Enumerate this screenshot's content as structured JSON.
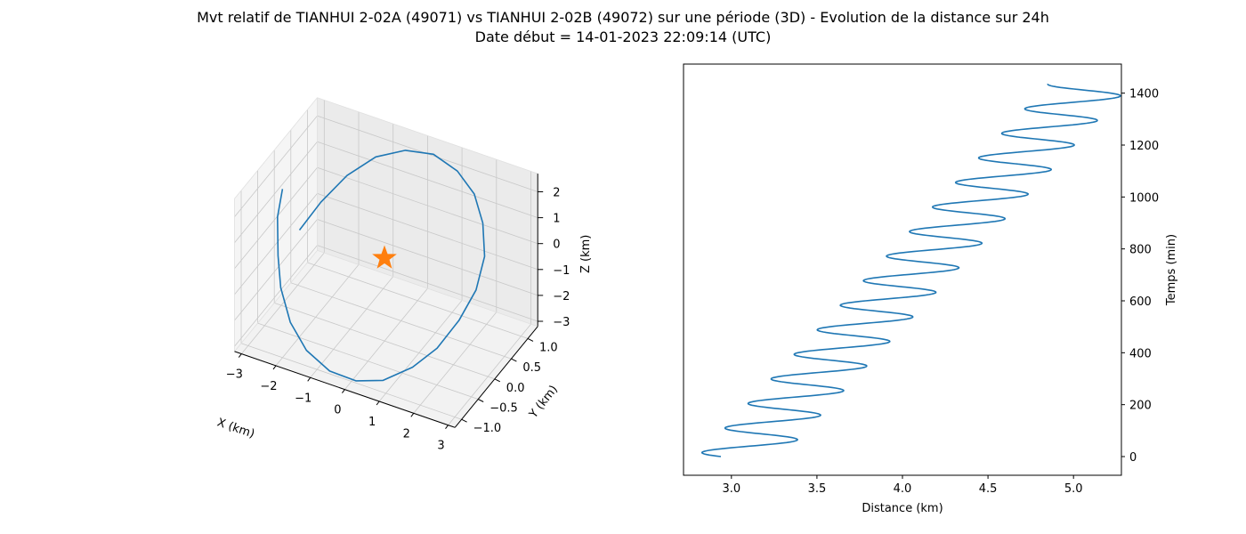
{
  "figure": {
    "title": "Mvt relatif de TIANHUI 2-02A (49071) vs TIANHUI 2-02B (49072) sur une période (3D) - Evolution de la distance sur 24h",
    "subtitle": "Date début = 14-01-2023 22:09:14 (UTC)"
  },
  "chart_data": [
    {
      "type": "line3d",
      "xlabel": "X (km)",
      "ylabel": "Y (km)",
      "zlabel": "Z (km)",
      "xlim": [
        -3.2,
        3.2
      ],
      "ylim": [
        -1.2,
        1.3
      ],
      "zlim": [
        -3.2,
        2.7
      ],
      "xticks": [
        -3,
        -2,
        -1,
        0,
        1,
        2,
        3
      ],
      "xtick_labels": [
        "−3",
        "−2",
        "−1",
        "0",
        "1",
        "2",
        "3"
      ],
      "yticks": [
        -1.0,
        -0.5,
        0.0,
        0.5,
        1.0
      ],
      "ytick_labels": [
        "−1.0",
        "−0.5",
        "0.0",
        "0.5",
        "1.0"
      ],
      "zticks": [
        -3,
        -2,
        -1,
        0,
        1,
        2
      ],
      "ztick_labels": [
        "−3",
        "−2",
        "−1",
        "0",
        "1",
        "2"
      ],
      "grid": true,
      "series": [
        {
          "kind": "relative-trajectory",
          "color": "#1f77b4",
          "points": [
            [
              -2.96,
              0.0,
              1.31
            ],
            [
              -3.03,
              -0.08,
              0.32
            ],
            [
              -2.86,
              -0.24,
              -0.84
            ],
            [
              -2.58,
              -0.45,
              -1.62
            ],
            [
              -2.11,
              -0.65,
              -2.43
            ],
            [
              -1.46,
              -0.84,
              -2.92
            ],
            [
              -0.66,
              -0.97,
              -3.15
            ],
            [
              0.16,
              -1.03,
              -3.06
            ],
            [
              0.92,
              -1.0,
              -2.74
            ],
            [
              1.64,
              -0.86,
              -2.12
            ],
            [
              2.18,
              -0.68,
              -1.42
            ],
            [
              2.61,
              -0.46,
              -0.48
            ],
            [
              2.86,
              -0.21,
              0.41
            ],
            [
              2.84,
              0.07,
              1.26
            ],
            [
              2.52,
              0.35,
              1.96
            ],
            [
              2.02,
              0.61,
              2.45
            ],
            [
              1.3,
              0.85,
              2.63
            ],
            [
              0.43,
              1.03,
              2.6
            ],
            [
              -0.47,
              1.12,
              2.2
            ],
            [
              -1.32,
              1.11,
              1.57
            ],
            [
              -2.03,
              0.98,
              0.73
            ],
            [
              -2.56,
              0.74,
              -0.17
            ],
            [
              -2.9,
              0.45,
              -0.95
            ]
          ]
        },
        {
          "kind": "marker",
          "marker": "star",
          "color": "#ff7f0e",
          "point": [
            0,
            0,
            0
          ]
        }
      ]
    },
    {
      "type": "line",
      "xlabel": "Distance (km)",
      "ylabel": "Temps (min)",
      "xlim": [
        2.72,
        5.28
      ],
      "ylim": [
        -72,
        1512
      ],
      "xticks": [
        3.0,
        3.5,
        4.0,
        4.5,
        5.0
      ],
      "yticks": [
        0,
        200,
        400,
        600,
        800,
        1000,
        1200,
        1400
      ],
      "y_axis_side": "right",
      "grid": false,
      "series": [
        {
          "color": "#1f77b4",
          "model": {
            "t_start": 0,
            "t_end": 1436,
            "dt": 2,
            "d0": 3.05,
            "drift_per_min": 0.001425,
            "amplitude": 0.245,
            "period_min": 94.6,
            "phase_deg": 207
          }
        }
      ]
    }
  ]
}
